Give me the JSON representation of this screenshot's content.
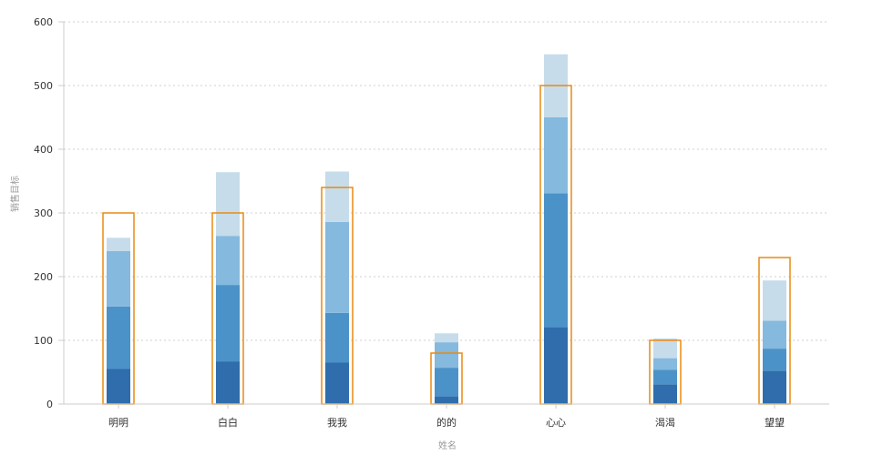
{
  "chart_data": {
    "type": "bar",
    "stacked": true,
    "title": "",
    "xlabel": "姓名",
    "ylabel": "销售目标",
    "ylim": [
      0,
      600
    ],
    "yticks": [
      0,
      100,
      200,
      300,
      400,
      500,
      600
    ],
    "grid": true,
    "categories": [
      "明明",
      "白白",
      "我我",
      "的的",
      "心心",
      "渴渴",
      "望望"
    ],
    "series": [
      {
        "values": [
          55,
          67,
          65,
          12,
          121,
          31,
          52
        ],
        "color": "#2f6dac"
      },
      {
        "values": [
          98,
          120,
          78,
          45,
          210,
          23,
          35
        ],
        "color": "#4b92c8"
      },
      {
        "values": [
          87,
          77,
          143,
          40,
          119,
          18,
          44
        ],
        "color": "#85b9de"
      },
      {
        "values": [
          21,
          100,
          79,
          14,
          99,
          31,
          63
        ],
        "color": "#c6dcea"
      }
    ],
    "targets": [
      300,
      300,
      340,
      80,
      500,
      100,
      230
    ],
    "target_color": "#e88a12"
  }
}
